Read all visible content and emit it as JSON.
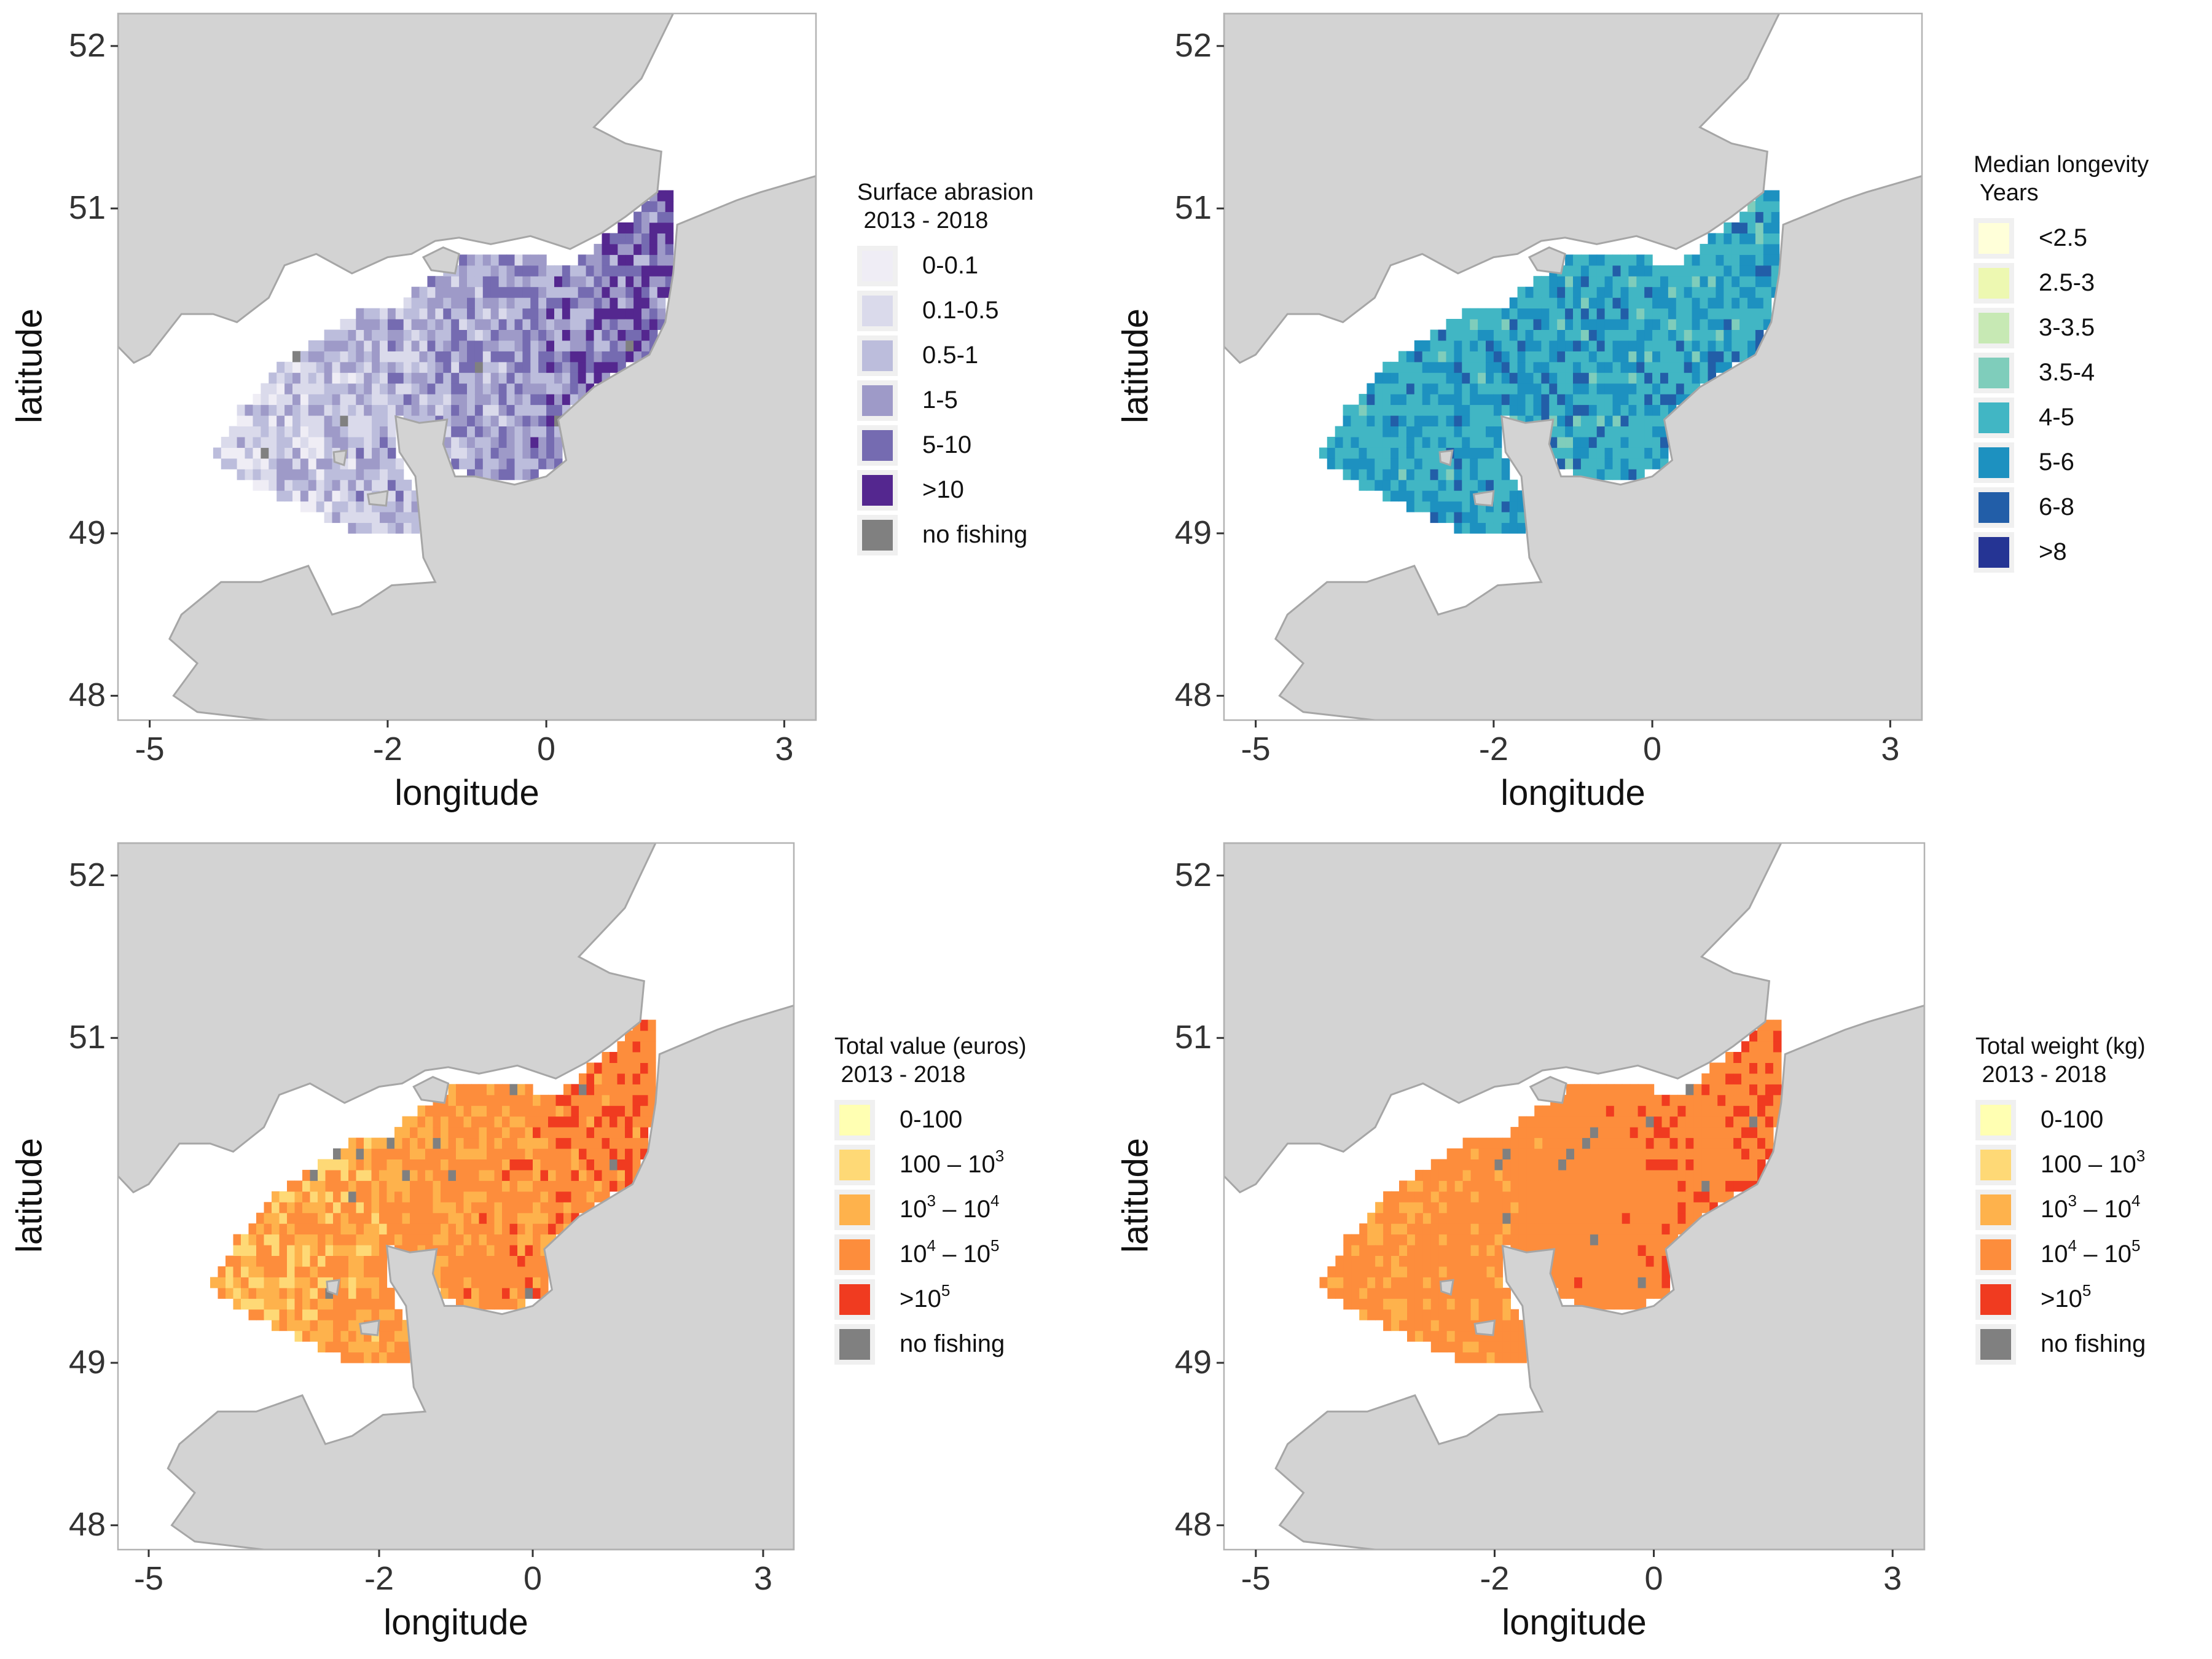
{
  "panels": [
    {
      "id": "abrasion",
      "legend_title_lines": [
        "Surface abrasion",
        " 2013 - 2018"
      ],
      "legend_items": [
        {
          "label": "0-0.1",
          "color": "#efedf5"
        },
        {
          "label": "0.1-0.5",
          "color": "#dadaeb"
        },
        {
          "label": "0.5-1",
          "color": "#bcbddc"
        },
        {
          "label": "1-5",
          "color": "#9e9ac8"
        },
        {
          "label": "5-10",
          "color": "#756bb1"
        },
        {
          "label": ">10",
          "color": "#54278f"
        },
        {
          "label": "no fishing",
          "color": "#808080"
        }
      ]
    },
    {
      "id": "longevity",
      "legend_title_lines": [
        "Median longevity",
        " Years"
      ],
      "legend_items": [
        {
          "label": "<2.5",
          "color": "#ffffd9"
        },
        {
          "label": "2.5-3",
          "color": "#edf8b1"
        },
        {
          "label": "3-3.5",
          "color": "#c7e9b4"
        },
        {
          "label": "3.5-4",
          "color": "#7fcdbb"
        },
        {
          "label": "4-5",
          "color": "#41b6c4"
        },
        {
          "label": "5-6",
          "color": "#1d91c0"
        },
        {
          "label": "6-8",
          "color": "#225ea8"
        },
        {
          "label": ">8",
          "color": "#253494"
        }
      ]
    },
    {
      "id": "value",
      "legend_title_lines": [
        "Total value (euros)",
        " 2013 - 2018"
      ],
      "legend_items": [
        {
          "label": "0-100",
          "color": "#ffffb2"
        },
        {
          "label": "100 – 10",
          "sup": "3",
          "color": "#fed976"
        },
        {
          "label": "10",
          "sup": "3",
          "mid": " – 10",
          "sup2": "4",
          "color": "#feb24c"
        },
        {
          "label": "10",
          "sup": "4",
          "mid": " – 10",
          "sup2": "5",
          "color": "#fd8d3c"
        },
        {
          "label": ">10",
          "sup": "5",
          "color": "#f03b20"
        },
        {
          "label": "no fishing",
          "color": "#808080"
        }
      ]
    },
    {
      "id": "weight",
      "legend_title_lines": [
        "Total weight (kg)",
        " 2013 - 2018"
      ],
      "legend_items": [
        {
          "label": "0-100",
          "color": "#ffffb2"
        },
        {
          "label": "100 – 10",
          "sup": "3",
          "color": "#fed976"
        },
        {
          "label": "10",
          "sup": "3",
          "mid": " – 10",
          "sup2": "4",
          "color": "#feb24c"
        },
        {
          "label": "10",
          "sup": "4",
          "mid": " – 10",
          "sup2": "5",
          "color": "#fd8d3c"
        },
        {
          "label": ">10",
          "sup": "5",
          "color": "#f03b20"
        },
        {
          "label": "no fishing",
          "color": "#808080"
        }
      ]
    }
  ],
  "axes": {
    "xlabel": "longitude",
    "ylabel": "latitude",
    "x_ticks": [
      "-5",
      "-2",
      "0",
      "3"
    ],
    "y_ticks": [
      "52",
      "51",
      "49",
      "48"
    ]
  },
  "chart_data": {
    "type": "heatmap",
    "description_type": "map",
    "x_ticks": [
      -5,
      -2,
      0,
      3
    ],
    "y_ticks": [
      48,
      49,
      51,
      52
    ],
    "xlim": [
      -5.4,
      3.4
    ],
    "ylim": [
      47.85,
      52.2
    ],
    "xlabel": "longitude",
    "ylabel": "latitude",
    "colors": {
      "land": "#d3d3d3",
      "coast": "#a6a6a6",
      "sea": "#ffffff",
      "panel_border": "#b3b3b3"
    }
  }
}
